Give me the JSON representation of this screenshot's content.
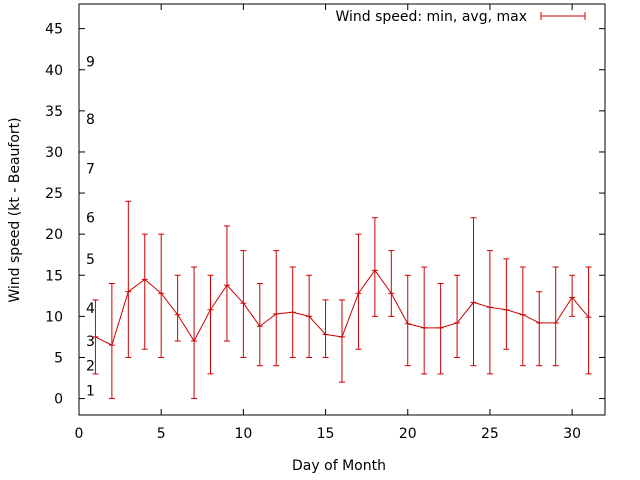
{
  "chart_data": {
    "type": "line",
    "title": "",
    "xlabel": "Day of Month",
    "ylabel": "Wind speed (kt - Beaufort)",
    "xlim": [
      0,
      32
    ],
    "ylim": [
      -2,
      48
    ],
    "xticks": [
      0,
      5,
      10,
      15,
      20,
      25,
      30
    ],
    "yticks": [
      0,
      5,
      10,
      15,
      20,
      25,
      30,
      35,
      40,
      45
    ],
    "grid": false,
    "legend_position": "top-right",
    "beaufort_labels": [
      {
        "label": "1",
        "value": 1
      },
      {
        "label": "2",
        "value": 4
      },
      {
        "label": "3",
        "value": 7
      },
      {
        "label": "4",
        "value": 11
      },
      {
        "label": "5",
        "value": 17
      },
      {
        "label": "6",
        "value": 22
      },
      {
        "label": "7",
        "value": 28
      },
      {
        "label": "8",
        "value": 34
      },
      {
        "label": "9",
        "value": 41
      }
    ],
    "series": [
      {
        "name": "Wind speed: min, avg, max",
        "color": "#cc0000",
        "x": [
          1,
          2,
          3,
          4,
          5,
          6,
          7,
          8,
          9,
          10,
          11,
          12,
          13,
          14,
          15,
          16,
          17,
          18,
          19,
          20,
          21,
          22,
          23,
          24,
          25,
          26,
          27,
          28,
          29,
          30,
          31
        ],
        "avg": [
          7.5,
          6.5,
          13,
          14.5,
          12.8,
          10.2,
          7,
          10.8,
          13.8,
          11.6,
          8.8,
          10.3,
          10.5,
          10,
          7.8,
          7.5,
          12.8,
          15.6,
          12.8,
          9.1,
          8.6,
          8.6,
          9.2,
          11.7,
          11.1,
          10.8,
          10.2,
          9.2,
          9.2,
          12.3,
          9.9
        ],
        "min": [
          3,
          0,
          5,
          6,
          5,
          7,
          0,
          3,
          7,
          5,
          4,
          4,
          5,
          5,
          5,
          2,
          6,
          10,
          10,
          4,
          3,
          3,
          5,
          4,
          3,
          6,
          4,
          4,
          4,
          10,
          3
        ],
        "max": [
          12,
          14,
          24,
          20,
          20,
          15,
          16,
          15,
          21,
          18,
          14,
          18,
          16,
          15,
          12,
          12,
          20,
          22,
          18,
          15,
          16,
          14,
          15,
          22,
          18,
          17,
          16,
          13,
          16,
          15,
          16
        ]
      }
    ]
  }
}
